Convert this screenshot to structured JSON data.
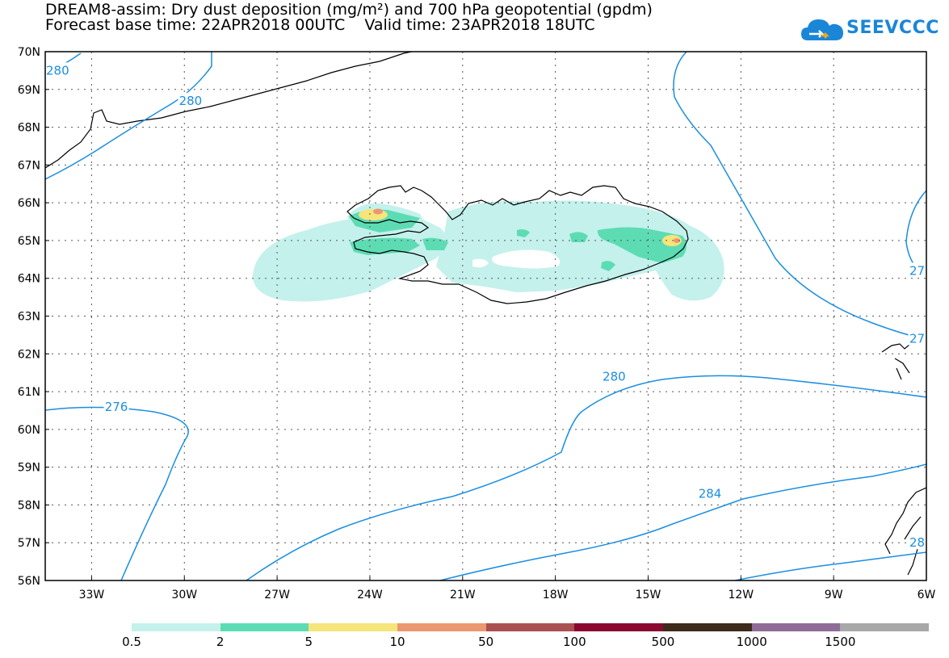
{
  "title": {
    "line1": "DREAM8-assim: Dry dust deposition (mg/m²) and 700 hPa geopotential (gpdm)",
    "line2": "Forecast base time: 22APR2018 00UTC    Valid time: 23APR2018 18UTC"
  },
  "logo": {
    "text": "SEEVCCC",
    "icon": "cloud-icon"
  },
  "axes": {
    "lat_labels": [
      "70N",
      "69N",
      "68N",
      "67N",
      "66N",
      "65N",
      "64N",
      "63N",
      "62N",
      "61N",
      "60N",
      "59N",
      "58N",
      "57N",
      "56N"
    ],
    "lon_labels": [
      "33W",
      "30W",
      "27W",
      "24W",
      "21W",
      "18W",
      "15W",
      "12W",
      "9W",
      "6W"
    ],
    "lat_range": [
      56,
      70
    ],
    "lon_range": [
      -34.5,
      -6
    ]
  },
  "contour_labels": [
    {
      "text": "280",
      "lon": -34.1,
      "lat": 69.5
    },
    {
      "text": "280",
      "lon": -29.8,
      "lat": 68.7
    },
    {
      "text": "276",
      "lon": -32.2,
      "lat": 60.6
    },
    {
      "text": "280",
      "lon": -16.1,
      "lat": 61.4
    },
    {
      "text": "284",
      "lon": -13.0,
      "lat": 58.3
    },
    {
      "text": "27",
      "lon": -6.3,
      "lat": 64.2
    },
    {
      "text": "27",
      "lon": -6.3,
      "lat": 62.4
    },
    {
      "text": "28",
      "lon": -6.3,
      "lat": 57.0
    }
  ],
  "legend": {
    "labels": [
      "0.5",
      "2",
      "5",
      "10",
      "50",
      "100",
      "500",
      "1000",
      "1500"
    ],
    "colors": [
      "#c4f1ec",
      "#5ddcb4",
      "#f6e57a",
      "#ed9772",
      "#aa5050",
      "#8a0830",
      "#3d2a1a",
      "#8f6c98",
      "#a8a8a8"
    ]
  },
  "colors": {
    "contour": "#1a8ee0",
    "coast": "#000000",
    "grid": "#444444"
  }
}
